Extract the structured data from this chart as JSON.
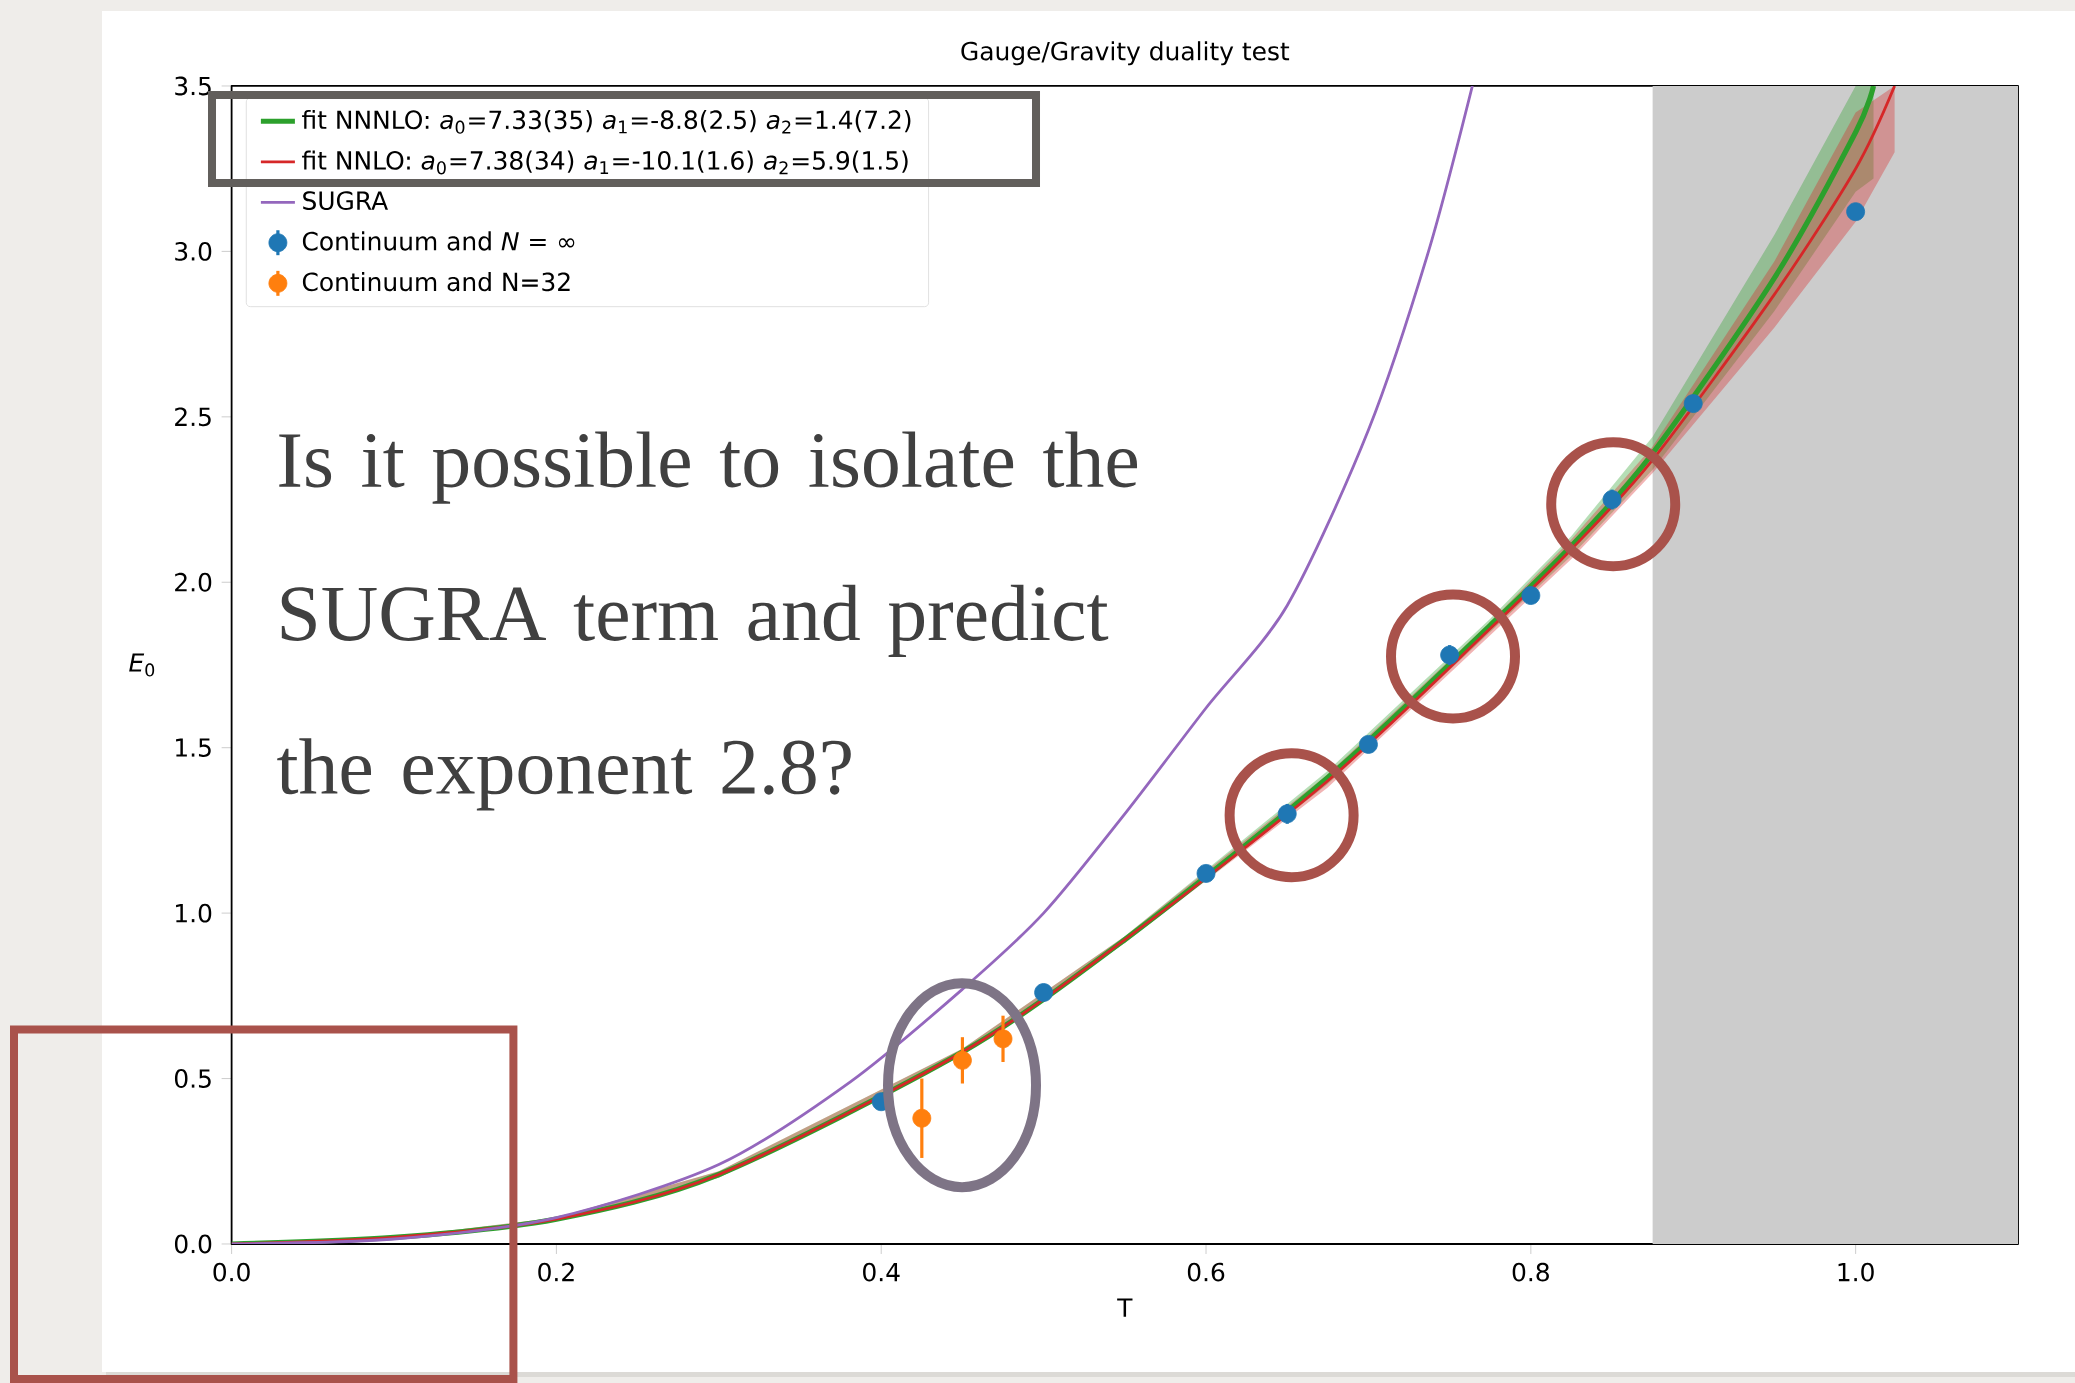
{
  "chart_data": {
    "type": "line",
    "title": "Gauge/Gravity duality test",
    "xlabel": "T",
    "ylabel": "*E*$_{0}$",
    "xlim": [
      0,
      1.1
    ],
    "ylim": [
      0,
      3.5
    ],
    "xticks": [
      {
        "value": 0,
        "label": "0.0"
      },
      {
        "value": 0.2,
        "label": "0.2"
      },
      {
        "value": 0.4,
        "label": "0.4"
      },
      {
        "value": 0.6,
        "label": "0.6"
      },
      {
        "value": 0.8,
        "label": "0.8"
      },
      {
        "value": 1,
        "label": "1.0"
      }
    ],
    "yticks": [
      {
        "value": 0,
        "label": "0.0"
      },
      {
        "value": 0.5,
        "label": "0.5"
      },
      {
        "value": 1,
        "label": "1.0"
      },
      {
        "value": 1.5,
        "label": "1.5"
      },
      {
        "value": 2,
        "label": "2.0"
      },
      {
        "value": 2.5,
        "label": "2.5"
      },
      {
        "value": 3,
        "label": "3.0"
      },
      {
        "value": 3.5,
        "label": "3.5"
      }
    ],
    "grid": false,
    "legend": "top left",
    "marker": "none",
    "bands": [
      {
        "axis": "x",
        "from": 0.875,
        "to": 1.1,
        "color": "#cccccc"
      }
    ],
    "series": [
      {
        "name": "fit NNNLO: *a*$_{0}$=7.33(35) *a*$_{1}$=-8.8(2.5) *a*$_{2}$=1.4(7.2)",
        "color": "#2ca02c",
        "x": [
          0,
          0.1,
          0.2,
          0.3,
          0.45,
          0.55,
          0.675,
          0.775,
          0.825,
          0.875,
          0.95,
          1.0,
          1.011
        ],
        "values": [
          0,
          0.02,
          0.075,
          0.21,
          0.58,
          0.92,
          1.41,
          1.87,
          2.11,
          2.39,
          2.92,
          3.36,
          3.5
        ],
        "lower": [
          0,
          0.02,
          0.07,
          0.2,
          0.57,
          0.91,
          1.39,
          1.85,
          2.08,
          2.34,
          2.82,
          3.18,
          3.22
        ],
        "upper": [
          0,
          0.02,
          0.08,
          0.22,
          0.59,
          0.93,
          1.43,
          1.89,
          2.14,
          2.44,
          3.05,
          3.5,
          3.5
        ]
      },
      {
        "name": "fit NNLO:   *a*$_{0}$=7.38(34) *a*$_{1}$=-10.1(1.6) *a*$_{2}$=5.9(1.5)",
        "color": "#d62728",
        "x": [
          0,
          0.1,
          0.2,
          0.3,
          0.45,
          0.55,
          0.675,
          0.775,
          0.825,
          0.875,
          0.95,
          1.0,
          1.024
        ],
        "values": [
          0,
          0.02,
          0.075,
          0.21,
          0.58,
          0.92,
          1.4,
          1.86,
          2.1,
          2.37,
          2.87,
          3.25,
          3.5
        ],
        "lower": [
          0,
          0.02,
          0.07,
          0.2,
          0.57,
          0.91,
          1.38,
          1.84,
          2.07,
          2.33,
          2.77,
          3.09,
          3.3
        ],
        "upper": [
          0,
          0.02,
          0.08,
          0.22,
          0.59,
          0.93,
          1.42,
          1.88,
          2.13,
          2.41,
          2.97,
          3.42,
          3.5
        ]
      },
      {
        "name": "SUGRA",
        "color": "#9467bd",
        "x": [
          0,
          0.1,
          0.2,
          0.3,
          0.381,
          0.45,
          0.5,
          0.55,
          0.6,
          0.65,
          0.7,
          0.737,
          0.764
        ],
        "values": [
          0,
          0.015,
          0.08,
          0.24,
          0.49,
          0.77,
          1.0,
          1.3,
          1.62,
          1.93,
          2.46,
          3.0,
          3.5
        ]
      },
      {
        "name": "Continuum and *N* = ∞",
        "type": "scatter",
        "marker": "circle",
        "color": "#1f77b4",
        "x": [
          0.4,
          0.5,
          0.6,
          0.65,
          0.7,
          0.75,
          0.8,
          0.85,
          0.9,
          1.0
        ],
        "values": [
          0.43,
          0.76,
          1.12,
          1.3,
          1.51,
          1.78,
          1.96,
          2.25,
          2.54,
          3.12
        ],
        "errors": [
          0.02,
          null,
          null,
          0.03,
          null,
          0.03,
          null,
          0.03,
          null,
          0.02
        ]
      },
      {
        "name": "Continuum and N=32",
        "type": "scatter",
        "marker": "circle",
        "color": "#ff7f0e",
        "x": [
          0.425,
          0.45,
          0.475
        ],
        "values": [
          0.38,
          0.555,
          0.62
        ],
        "errors": [
          0.12,
          0.07,
          0.07
        ]
      }
    ],
    "annotations": [
      "Is it possible to isolate the SUGRA term and predict the exponent 2.8?"
    ]
  }
}
